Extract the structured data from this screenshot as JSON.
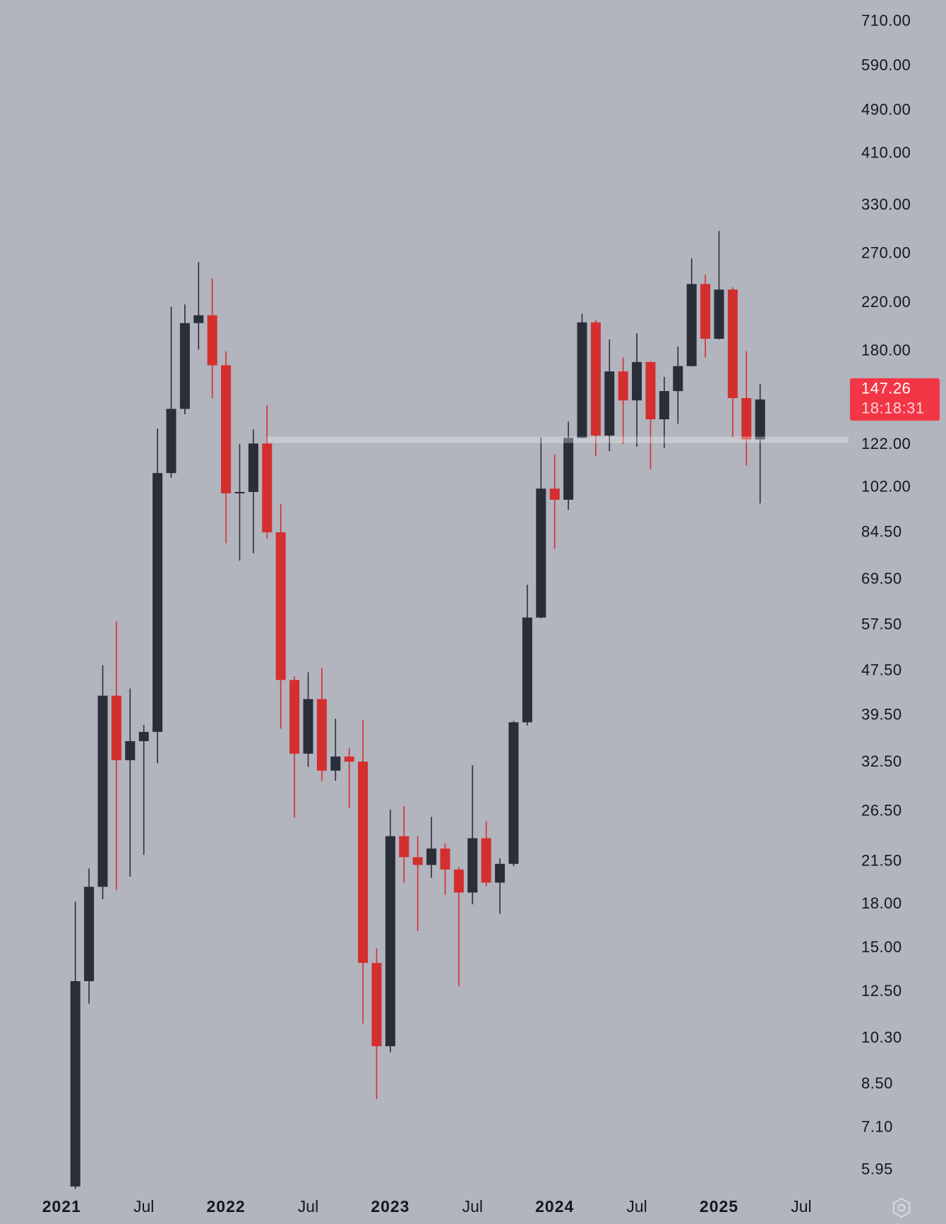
{
  "chart_data": {
    "type": "candlestick",
    "log_scale": true,
    "up_color": "#2a2e39",
    "down_color": "#d32f2f",
    "x": [
      "2021-02",
      "2021-03",
      "2021-04",
      "2021-05",
      "2021-06",
      "2021-07",
      "2021-08",
      "2021-09",
      "2021-10",
      "2021-11",
      "2021-12",
      "2022-01",
      "2022-02",
      "2022-03",
      "2022-04",
      "2022-05",
      "2022-06",
      "2022-07",
      "2022-08",
      "2022-09",
      "2022-10",
      "2022-11",
      "2022-12",
      "2023-01",
      "2023-02",
      "2023-03",
      "2023-04",
      "2023-05",
      "2023-06",
      "2023-07",
      "2023-08",
      "2023-09",
      "2023-10",
      "2023-11",
      "2023-12",
      "2024-01",
      "2024-02",
      "2024-03",
      "2024-04",
      "2024-05",
      "2024-06",
      "2024-07",
      "2024-08",
      "2024-09",
      "2024-10",
      "2024-11",
      "2024-12",
      "2025-01",
      "2025-02",
      "2025-03",
      "2025-04"
    ],
    "open": [
      5.56,
      13.07,
      19.36,
      42.9,
      32.8,
      35.5,
      36.9,
      108.4,
      141.6,
      202.4,
      209.1,
      169.8,
      99.6,
      100.2,
      122.6,
      84.7,
      45.8,
      33.7,
      42.3,
      31.4,
      33.3,
      32.6,
      14.1,
      9.97,
      23.9,
      21.9,
      21.2,
      22.7,
      20.8,
      18.9,
      23.7,
      19.7,
      21.3,
      38.4,
      59.4,
      101.6,
      97.0,
      125.5,
      203,
      126.7,
      165.5,
      146.7,
      172.1,
      135.6,
      152.5,
      169.2,
      238.2,
      189.6,
      232.7,
      148.1,
      124.7
    ],
    "high": [
      18.2,
      20.9,
      48.7,
      58.4,
      44.2,
      38.0,
      130.5,
      216.6,
      218.8,
      260.9,
      243.5,
      180,
      122.3,
      130.1,
      143.9,
      95.2,
      46.5,
      47.3,
      48.2,
      39.0,
      34.5,
      38.8,
      14.97,
      26.7,
      27.1,
      23.9,
      25.9,
      23.2,
      21.0,
      32.1,
      25.4,
      21.8,
      38.6,
      68.1,
      125.9,
      117.2,
      134.3,
      210.4,
      205,
      189.0,
      175.4,
      194.0,
      172.8,
      161.8,
      183.6,
      265.0,
      247.6,
      297.0,
      235,
      180.0,
      157.1
    ],
    "low": [
      5.5,
      11.9,
      18.4,
      19.1,
      20.2,
      22.1,
      32.4,
      106.3,
      138.4,
      181.2,
      148.1,
      80.9,
      75.3,
      77.6,
      82.5,
      37.4,
      25.8,
      31.9,
      30.1,
      30.1,
      26.9,
      10.96,
      8.0,
      9.72,
      19.7,
      16.1,
      20.1,
      18.7,
      12.8,
      18.0,
      19.4,
      17.3,
      21.1,
      37.9,
      59.2,
      79.1,
      93.0,
      125.2,
      116.4,
      118.7,
      122.3,
      121.0,
      110.2,
      120.3,
      133.1,
      169,
      175.4,
      189,
      125.9,
      111.9,
      95.5
    ],
    "close": [
      13.07,
      19.36,
      42.9,
      32.8,
      35.5,
      36.9,
      108.4,
      141.6,
      202.4,
      209.1,
      169.8,
      99.6,
      100.2,
      122.6,
      84.7,
      45.8,
      33.7,
      42.3,
      31.4,
      33.3,
      32.6,
      14.1,
      9.97,
      23.9,
      21.9,
      21.2,
      22.7,
      20.8,
      18.9,
      23.7,
      19.7,
      21.3,
      38.4,
      59.4,
      101.6,
      97.0,
      125.5,
      203,
      126.7,
      165.5,
      146.7,
      172.1,
      135.6,
      152.5,
      169.2,
      238.2,
      189.6,
      232.7,
      148.1,
      124.7,
      147.26
    ],
    "ylim": [
      5.38,
      777
    ],
    "yticks": [
      {
        "value": 710,
        "label": "710.00"
      },
      {
        "value": 590,
        "label": "590.00"
      },
      {
        "value": 490,
        "label": "490.00"
      },
      {
        "value": 410,
        "label": "410.00"
      },
      {
        "value": 330,
        "label": "330.00"
      },
      {
        "value": 270,
        "label": "270.00"
      },
      {
        "value": 220,
        "label": "220.00"
      },
      {
        "value": 180,
        "label": "180.00"
      },
      {
        "value": 122,
        "label": "122.00"
      },
      {
        "value": 102,
        "label": "102.00"
      },
      {
        "value": 84.5,
        "label": "84.50"
      },
      {
        "value": 69.5,
        "label": "69.50"
      },
      {
        "value": 57.5,
        "label": "57.50"
      },
      {
        "value": 47.5,
        "label": "47.50"
      },
      {
        "value": 39.5,
        "label": "39.50"
      },
      {
        "value": 32.5,
        "label": "32.50"
      },
      {
        "value": 26.5,
        "label": "26.50"
      },
      {
        "value": 21.5,
        "label": "21.50"
      },
      {
        "value": 18,
        "label": "18.00"
      },
      {
        "value": 15,
        "label": "15.00"
      },
      {
        "value": 12.5,
        "label": "12.50"
      },
      {
        "value": 10.3,
        "label": "10.30"
      },
      {
        "value": 8.5,
        "label": "8.50"
      },
      {
        "value": 7.1,
        "label": "7.10"
      },
      {
        "value": 5.95,
        "label": "5.95"
      }
    ],
    "xticks": [
      {
        "value": "2021-01",
        "label": "2021"
      },
      {
        "value": "2021-07",
        "label": "Jul"
      },
      {
        "value": "2022-01",
        "label": "2022"
      },
      {
        "value": "2022-07",
        "label": "Jul"
      },
      {
        "value": "2023-01",
        "label": "2023"
      },
      {
        "value": "2023-07",
        "label": "Jul"
      },
      {
        "value": "2024-01",
        "label": "2024"
      },
      {
        "value": "2024-07",
        "label": "Jul"
      },
      {
        "value": "2025-01",
        "label": "2025"
      },
      {
        "value": "2025-07",
        "label": "Jul"
      }
    ],
    "last_price": 147.26,
    "last_price_color": "#f23645",
    "countdown": "18:18:31",
    "hline": {
      "value": 124.5,
      "start": "2022-04",
      "color": "rgba(255,255,255,0.3)"
    }
  }
}
